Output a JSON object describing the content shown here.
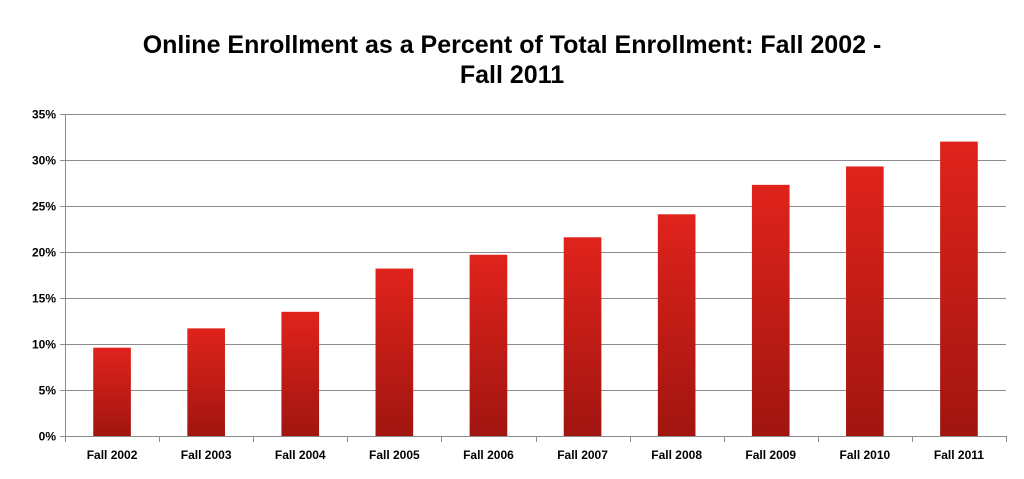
{
  "chart_data": {
    "type": "bar",
    "title_line1": "Online Enrollment as a Percent of Total Enrollment: Fall 2002 -",
    "title_line2": "Fall 2011",
    "xlabel": "",
    "ylabel": "",
    "categories": [
      "Fall 2002",
      "Fall 2003",
      "Fall 2004",
      "Fall 2005",
      "Fall 2006",
      "Fall 2007",
      "Fall 2008",
      "Fall 2009",
      "Fall 2010",
      "Fall 2011"
    ],
    "values": [
      9.6,
      11.7,
      13.5,
      18.2,
      19.7,
      21.6,
      24.1,
      27.3,
      29.3,
      32.0
    ],
    "ylim": [
      0,
      35
    ],
    "yticks": [
      0,
      5,
      10,
      15,
      20,
      25,
      30,
      35
    ],
    "ytick_labels": [
      "0%",
      "5%",
      "10%",
      "15%",
      "20%",
      "25%",
      "30%",
      "35%"
    ],
    "grid": true,
    "legend": "none",
    "colors": {
      "bar_top": "#e0231c",
      "bar_bottom": "#a11510",
      "grid": "#8c8c8c",
      "axis": "#8c8c8c"
    }
  }
}
